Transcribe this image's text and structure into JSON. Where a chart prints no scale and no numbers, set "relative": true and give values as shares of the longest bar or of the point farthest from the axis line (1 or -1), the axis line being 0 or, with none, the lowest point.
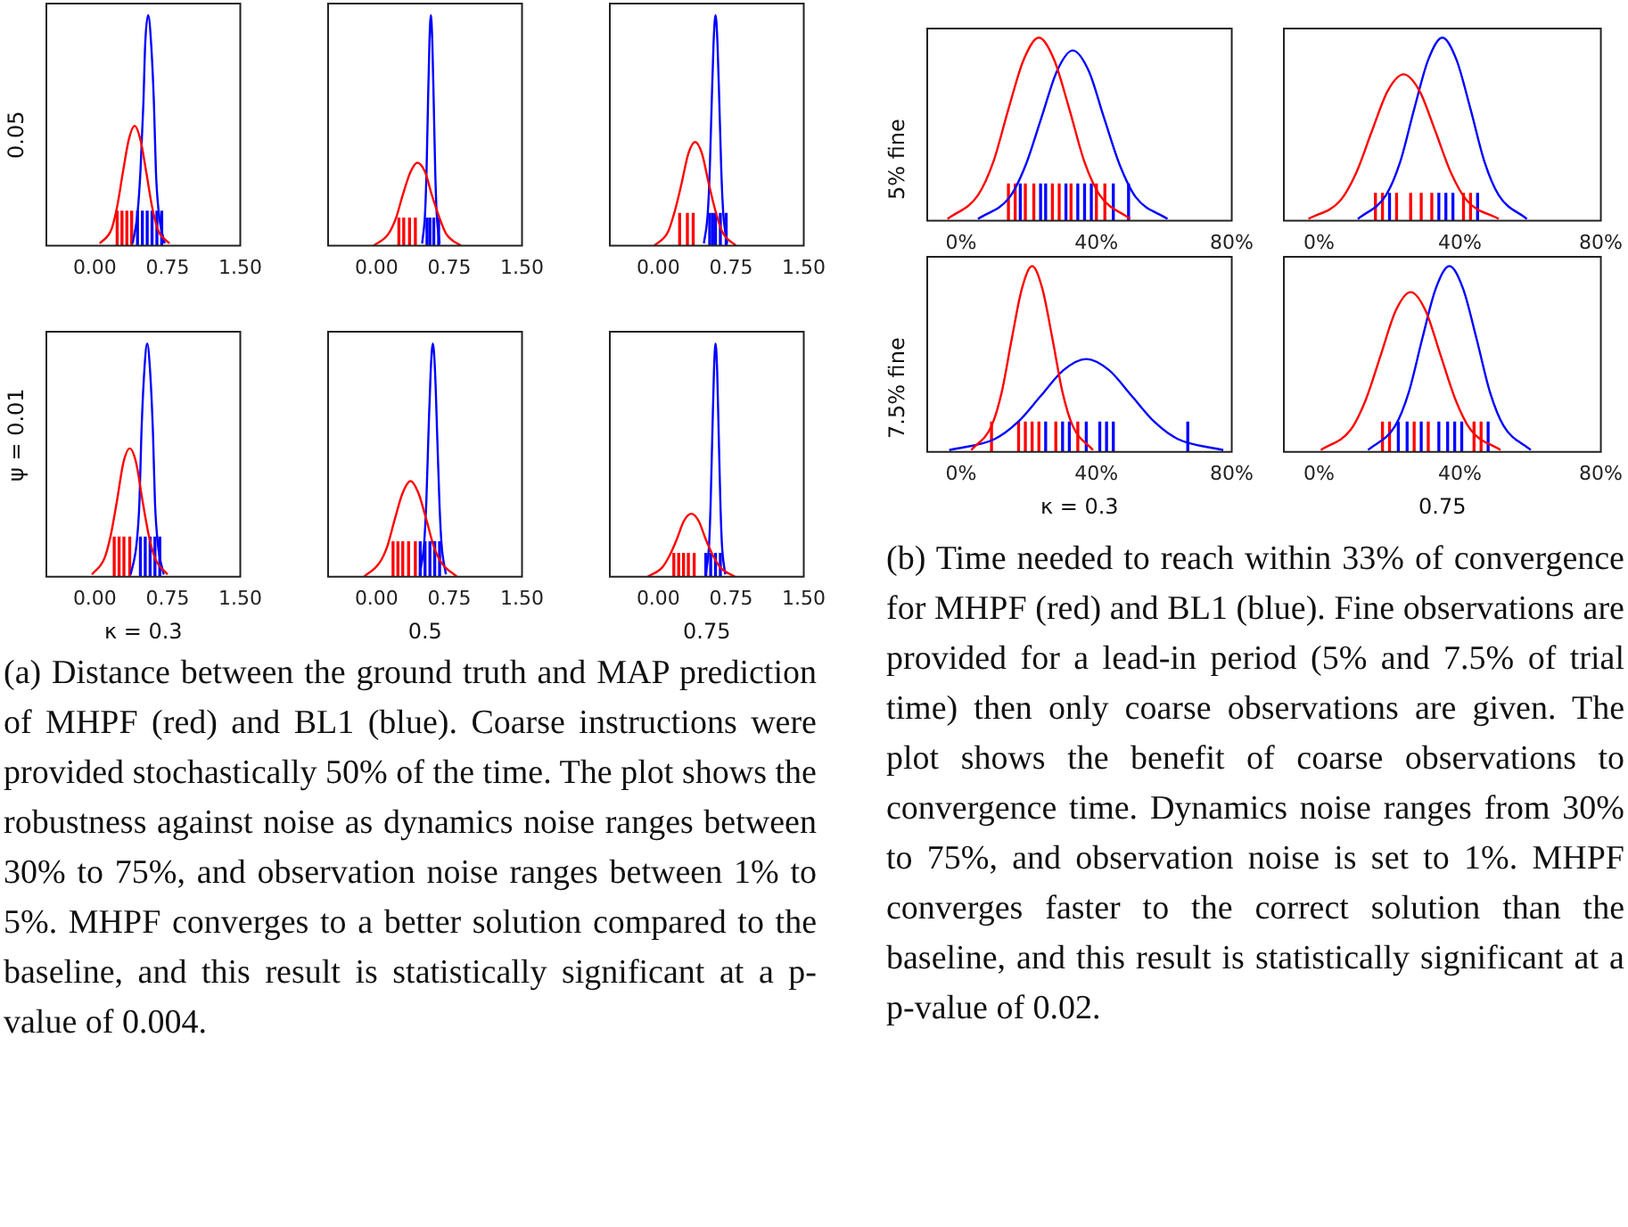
{
  "chart_data": [
    {
      "type": "line",
      "ylabel": "0.05",
      "relative": true,
      "tick_labels": "x",
      "xlim": [
        -0.5,
        1.5
      ],
      "xticks": [
        {
          "value": 0,
          "label": "0.00"
        },
        {
          "value": 0.75,
          "label": "0.75"
        },
        {
          "value": 1.5,
          "label": "1.50"
        }
      ],
      "series": [
        {
          "color": "#ff0000",
          "x": [
            0.05,
            0.17,
            0.23,
            0.29,
            0.35,
            0.41,
            0.47,
            0.53,
            0.59,
            0.65,
            0.77
          ],
          "values": [
            0.01,
            0.07,
            0.17,
            0.32,
            0.46,
            0.52,
            0.46,
            0.32,
            0.17,
            0.07,
            0.01
          ]
        },
        {
          "color": "#0000ff",
          "x": [
            0.39,
            0.44,
            0.47,
            0.5,
            0.52,
            0.55,
            0.58,
            0.61,
            0.63,
            0.66,
            0.72
          ],
          "values": [
            0.01,
            0.14,
            0.32,
            0.61,
            0.88,
            1,
            0.88,
            0.61,
            0.32,
            0.14,
            0.01
          ]
        },
        {
          "type": "bar",
          "color": "#ff0000",
          "x": [
            0.23,
            0.28,
            0.33,
            0.38
          ],
          "values": [
            0.15,
            0.15,
            0.15,
            0.15
          ]
        },
        {
          "type": "bar",
          "color": "#0000ff",
          "x": [
            0.44,
            0.49,
            0.54,
            0.59,
            0.64,
            0.69
          ],
          "values": [
            0.15,
            0.15,
            0.15,
            0.15,
            0.15,
            0.15
          ]
        }
      ]
    },
    {
      "type": "line",
      "relative": true,
      "tick_labels": "x",
      "xlim": [
        -0.5,
        1.5
      ],
      "xticks": [
        {
          "value": 0,
          "label": "0.00"
        },
        {
          "value": 0.75,
          "label": "0.75"
        },
        {
          "value": 1.5,
          "label": "1.50"
        }
      ],
      "series": [
        {
          "color": "#ff0000",
          "x": [
            -0.03,
            0.12,
            0.2,
            0.27,
            0.35,
            0.42,
            0.5,
            0.57,
            0.65,
            0.72,
            0.87
          ],
          "values": [
            0,
            0.05,
            0.12,
            0.22,
            0.32,
            0.36,
            0.32,
            0.22,
            0.12,
            0.05,
            0
          ]
        },
        {
          "color": "#0000ff",
          "x": [
            0.47,
            0.5,
            0.515,
            0.53,
            0.545,
            0.56,
            0.575,
            0.59,
            0.605,
            0.62,
            0.65
          ],
          "values": [
            0.01,
            0.14,
            0.32,
            0.61,
            0.88,
            1,
            0.88,
            0.61,
            0.32,
            0.14,
            0.01
          ]
        },
        {
          "type": "bar",
          "color": "#ff0000",
          "x": [
            0.23,
            0.28,
            0.34,
            0.4
          ],
          "values": [
            0.12,
            0.12,
            0.12,
            0.12
          ]
        },
        {
          "type": "bar",
          "color": "#0000ff",
          "x": [
            0.52,
            0.55,
            0.59,
            0.64
          ],
          "values": [
            0.12,
            0.12,
            0.12,
            0.12
          ]
        }
      ]
    },
    {
      "type": "line",
      "relative": true,
      "tick_labels": "x",
      "xlim": [
        -0.5,
        1.5
      ],
      "xticks": [
        {
          "value": 0,
          "label": "0.00"
        },
        {
          "value": 0.75,
          "label": "0.75"
        },
        {
          "value": 1.5,
          "label": "1.50"
        }
      ],
      "series": [
        {
          "color": "#ff0000",
          "x": [
            -0.04,
            0.1,
            0.17,
            0.24,
            0.31,
            0.38,
            0.45,
            0.52,
            0.59,
            0.66,
            0.8
          ],
          "values": [
            0,
            0.06,
            0.15,
            0.27,
            0.4,
            0.45,
            0.4,
            0.27,
            0.15,
            0.06,
            0
          ]
        },
        {
          "color": "#0000ff",
          "x": [
            0.47,
            0.51,
            0.53,
            0.55,
            0.57,
            0.59,
            0.61,
            0.63,
            0.65,
            0.67,
            0.71
          ],
          "values": [
            0.01,
            0.14,
            0.32,
            0.61,
            0.88,
            1,
            0.88,
            0.61,
            0.32,
            0.14,
            0.01
          ]
        },
        {
          "type": "bar",
          "color": "#ff0000",
          "x": [
            0.22,
            0.3,
            0.36
          ],
          "values": [
            0.14,
            0.14,
            0.14
          ]
        },
        {
          "type": "bar",
          "color": "#0000ff",
          "x": [
            0.53,
            0.56,
            0.59,
            0.64,
            0.7
          ],
          "values": [
            0.14,
            0.14,
            0.14,
            0.14,
            0.14
          ]
        }
      ]
    },
    {
      "type": "line",
      "ylabel": "ψ = 0.01",
      "xlabel": "κ = 0.3",
      "relative": true,
      "tick_labels": "x",
      "xlim": [
        -0.5,
        1.5
      ],
      "xticks": [
        {
          "value": 0,
          "label": "0.00"
        },
        {
          "value": 0.75,
          "label": "0.75"
        },
        {
          "value": 1.5,
          "label": "1.50"
        }
      ],
      "series": [
        {
          "color": "#ff0000",
          "x": [
            -0.03,
            0.1,
            0.165,
            0.23,
            0.295,
            0.36,
            0.425,
            0.49,
            0.555,
            0.62,
            0.75
          ],
          "values": [
            0.01,
            0.08,
            0.18,
            0.33,
            0.49,
            0.55,
            0.49,
            0.33,
            0.18,
            0.08,
            0.01
          ]
        },
        {
          "color": "#0000ff",
          "x": [
            0.37,
            0.43,
            0.46,
            0.48,
            0.51,
            0.54,
            0.57,
            0.6,
            0.62,
            0.65,
            0.71
          ],
          "values": [
            0.01,
            0.14,
            0.32,
            0.61,
            0.88,
            1,
            0.88,
            0.61,
            0.32,
            0.14,
            0.01
          ]
        },
        {
          "type": "bar",
          "color": "#ff0000",
          "x": [
            0.2,
            0.25,
            0.3,
            0.36
          ],
          "values": [
            0.17,
            0.17,
            0.17,
            0.17
          ]
        },
        {
          "type": "bar",
          "color": "#0000ff",
          "x": [
            0.47,
            0.52,
            0.57,
            0.62,
            0.67
          ],
          "values": [
            0.17,
            0.17,
            0.17,
            0.17,
            0.17
          ]
        }
      ]
    },
    {
      "type": "line",
      "xlabel": "0.5",
      "relative": true,
      "tick_labels": "x",
      "xlim": [
        -0.5,
        1.5
      ],
      "xticks": [
        {
          "value": 0,
          "label": "0.00"
        },
        {
          "value": 0.75,
          "label": "0.75"
        },
        {
          "value": 1.5,
          "label": "1.50"
        }
      ],
      "series": [
        {
          "color": "#ff0000",
          "x": [
            -0.13,
            0.03,
            0.11,
            0.19,
            0.27,
            0.35,
            0.43,
            0.51,
            0.59,
            0.67,
            0.83
          ],
          "values": [
            0,
            0.06,
            0.13,
            0.25,
            0.36,
            0.41,
            0.36,
            0.25,
            0.13,
            0.06,
            0
          ]
        },
        {
          "color": "#0000ff",
          "x": [
            0.445,
            0.49,
            0.513,
            0.535,
            0.558,
            0.58,
            0.603,
            0.625,
            0.648,
            0.67,
            0.715
          ],
          "values": [
            0.01,
            0.14,
            0.32,
            0.61,
            0.88,
            1,
            0.88,
            0.61,
            0.32,
            0.14,
            0.01
          ]
        },
        {
          "type": "bar",
          "color": "#ff0000",
          "x": [
            0.17,
            0.22,
            0.27,
            0.33,
            0.4
          ],
          "values": [
            0.15,
            0.15,
            0.15,
            0.15,
            0.15
          ]
        },
        {
          "type": "bar",
          "color": "#0000ff",
          "x": [
            0.45,
            0.5,
            0.55,
            0.6,
            0.65
          ],
          "values": [
            0.15,
            0.15,
            0.15,
            0.15,
            0.15
          ]
        }
      ]
    },
    {
      "type": "line",
      "xlabel": "0.75",
      "relative": true,
      "tick_labels": "x",
      "xlim": [
        -0.5,
        1.5
      ],
      "xticks": [
        {
          "value": 0,
          "label": "0.00"
        },
        {
          "value": 0.75,
          "label": "0.75"
        },
        {
          "value": 1.5,
          "label": "1.50"
        }
      ],
      "annotations": [
        "(a) Distance between the ground truth and MAP prediction of MHPF (red) and BL1 (blue). Coarse instructions were provided stochastically 50% of the time. The plot shows the robustness against noise as dynamics noise ranges between 30% to 75%, and observation noise ranges between 1% to 5%. MHPF converges to a better solution compared to the baseline, and this result is statistically significant at a p-value of 0.004."
      ],
      "series": [
        {
          "color": "#ff0000",
          "x": [
            -0.11,
            0.04,
            0.115,
            0.19,
            0.265,
            0.34,
            0.415,
            0.49,
            0.565,
            0.64,
            0.79
          ],
          "values": [
            0,
            0.04,
            0.09,
            0.16,
            0.24,
            0.27,
            0.24,
            0.16,
            0.09,
            0.04,
            0
          ]
        },
        {
          "color": "#0000ff",
          "x": [
            0.49,
            0.524,
            0.54,
            0.557,
            0.574,
            0.59,
            0.607,
            0.623,
            0.64,
            0.656,
            0.69
          ],
          "values": [
            0.01,
            0.14,
            0.32,
            0.61,
            0.88,
            1,
            0.88,
            0.61,
            0.32,
            0.14,
            0.01
          ]
        },
        {
          "type": "bar",
          "color": "#ff0000",
          "x": [
            0.16,
            0.21,
            0.26,
            0.31,
            0.37
          ],
          "values": [
            0.1,
            0.1,
            0.1,
            0.1,
            0.1
          ]
        },
        {
          "type": "bar",
          "color": "#0000ff",
          "x": [
            0.49,
            0.54,
            0.59,
            0.64
          ],
          "values": [
            0.1,
            0.1,
            0.1,
            0.1
          ]
        }
      ]
    },
    {
      "type": "line",
      "ylabel": "5% fine",
      "relative": true,
      "tick_labels": "x",
      "xlim": [
        -10,
        80
      ],
      "xticks": [
        {
          "value": 0,
          "label": "0%"
        },
        {
          "value": 40,
          "label": "40%"
        },
        {
          "value": 80,
          "label": "80%"
        }
      ],
      "series": [
        {
          "color": "#ff0000",
          "x": [
            -4,
            5,
            9.5,
            14,
            18.5,
            23,
            27.5,
            32,
            36.5,
            41,
            50
          ],
          "values": [
            0.01,
            0.14,
            0.32,
            0.61,
            0.88,
            1,
            0.88,
            0.61,
            0.32,
            0.14,
            0.01
          ]
        },
        {
          "color": "#0000ff",
          "x": [
            5,
            14.4,
            19,
            23.7,
            28.4,
            33,
            37.7,
            42.3,
            47,
            51.6,
            61
          ],
          "values": [
            0.01,
            0.13,
            0.3,
            0.56,
            0.82,
            0.93,
            0.82,
            0.56,
            0.3,
            0.13,
            0.01
          ]
        },
        {
          "type": "bar",
          "color": "#ff0000",
          "x": [
            14,
            16,
            19,
            21.5,
            27,
            29,
            32.5,
            40,
            42.5
          ],
          "values": [
            0.2,
            0.2,
            0.2,
            0.2,
            0.2,
            0.2,
            0.2,
            0.2,
            0.2
          ]
        },
        {
          "type": "bar",
          "color": "#0000ff",
          "x": [
            17.5,
            23.5,
            25,
            31,
            34.5,
            36.5,
            38.5,
            45,
            49.5
          ],
          "values": [
            0.2,
            0.2,
            0.2,
            0.2,
            0.2,
            0.2,
            0.2,
            0.2,
            0.2
          ]
        }
      ]
    },
    {
      "type": "line",
      "relative": true,
      "tick_labels": "x",
      "xlim": [
        -10,
        80
      ],
      "xticks": [
        {
          "value": 0,
          "label": "0%"
        },
        {
          "value": 40,
          "label": "40%"
        },
        {
          "value": 80,
          "label": "80%"
        }
      ],
      "series": [
        {
          "color": "#ff0000",
          "x": [
            -3,
            6,
            10.5,
            15,
            19.5,
            24,
            28.5,
            33,
            37.5,
            42,
            51
          ],
          "values": [
            0.01,
            0.11,
            0.26,
            0.49,
            0.71,
            0.8,
            0.71,
            0.49,
            0.26,
            0.11,
            0.01
          ]
        },
        {
          "color": "#0000ff",
          "x": [
            11,
            19,
            23,
            27,
            31,
            35,
            39,
            43,
            47,
            51,
            59
          ],
          "values": [
            0.01,
            0.14,
            0.32,
            0.61,
            0.88,
            1,
            0.88,
            0.61,
            0.32,
            0.14,
            0.01
          ]
        },
        {
          "type": "bar",
          "color": "#ff0000",
          "x": [
            16,
            18,
            22,
            26,
            29,
            32,
            41,
            43
          ],
          "values": [
            0.15,
            0.15,
            0.15,
            0.15,
            0.15,
            0.15,
            0.15,
            0.15
          ]
        },
        {
          "type": "bar",
          "color": "#0000ff",
          "x": [
            20,
            34,
            36,
            38,
            45
          ],
          "values": [
            0.15,
            0.15,
            0.15,
            0.15,
            0.15
          ]
        }
      ]
    },
    {
      "type": "line",
      "ylabel": "7.5% fine",
      "xlabel": "κ = 0.3",
      "relative": true,
      "tick_labels": "x",
      "xlim": [
        -10,
        80
      ],
      "xticks": [
        {
          "value": 0,
          "label": "0%"
        },
        {
          "value": 40,
          "label": "40%"
        },
        {
          "value": 80,
          "label": "80%"
        }
      ],
      "series": [
        {
          "color": "#ff0000",
          "x": [
            3,
            9,
            12,
            15,
            18,
            21,
            24,
            27,
            30,
            33,
            39
          ],
          "values": [
            0.01,
            0.14,
            0.32,
            0.61,
            0.88,
            1,
            0.88,
            0.61,
            0.32,
            0.14,
            0.01
          ]
        },
        {
          "color": "#0000ff",
          "x": [
            -3.5,
            10,
            16.75,
            23.5,
            30.25,
            37,
            43.75,
            50.5,
            57.25,
            64,
            77.5
          ],
          "values": [
            0.01,
            0.07,
            0.16,
            0.3,
            0.44,
            0.5,
            0.44,
            0.3,
            0.16,
            0.07,
            0.01
          ]
        },
        {
          "type": "bar",
          "color": "#ff0000",
          "x": [
            9,
            17,
            19,
            21,
            23,
            28,
            34.5
          ],
          "values": [
            0.16,
            0.16,
            0.16,
            0.16,
            0.16,
            0.16,
            0.16
          ]
        },
        {
          "type": "bar",
          "color": "#0000ff",
          "x": [
            25,
            30,
            32,
            37,
            41,
            43,
            45,
            67
          ],
          "values": [
            0.16,
            0.16,
            0.16,
            0.16,
            0.16,
            0.16,
            0.16,
            0.16
          ]
        }
      ]
    },
    {
      "type": "line",
      "xlabel": "0.75",
      "relative": true,
      "tick_labels": "x",
      "xlim": [
        -10,
        80
      ],
      "xticks": [
        {
          "value": 0,
          "label": "0%"
        },
        {
          "value": 40,
          "label": "40%"
        },
        {
          "value": 80,
          "label": "80%"
        }
      ],
      "annotations": [
        "(b) Time needed to reach within 33% of convergence for MHPF (red) and BL1 (blue). Fine observations are provided for a lead-in period (5% and 7.5% of trial time) then only coarse observations are given. The plot shows the benefit of coarse observations to convergence time. Dynamics noise ranges from 30% to 75%, and observation noise is set to 1%. MHPF converges faster to the correct solution than the baseline, and this result is statistically significant at a p-value of 0.02."
      ],
      "series": [
        {
          "color": "#ff0000",
          "x": [
            0.5,
            9,
            13.25,
            17.5,
            21.75,
            26,
            30.25,
            34.5,
            38.75,
            43,
            51.5
          ],
          "values": [
            0.01,
            0.12,
            0.28,
            0.52,
            0.76,
            0.86,
            0.76,
            0.52,
            0.28,
            0.12,
            0.01
          ]
        },
        {
          "color": "#0000ff",
          "x": [
            13.9,
            21.6,
            25.45,
            29.3,
            33.15,
            37,
            40.85,
            44.7,
            48.55,
            52.4,
            60.1
          ],
          "values": [
            0.01,
            0.14,
            0.32,
            0.61,
            0.88,
            1,
            0.88,
            0.61,
            0.32,
            0.14,
            0.01
          ]
        },
        {
          "type": "bar",
          "color": "#ff0000",
          "x": [
            18,
            20,
            27,
            31,
            44,
            46
          ],
          "values": [
            0.16,
            0.16,
            0.16,
            0.16,
            0.16,
            0.16
          ]
        },
        {
          "type": "bar",
          "color": "#0000ff",
          "x": [
            22.5,
            25,
            29,
            34,
            36.5,
            38.5,
            40.5,
            48
          ],
          "values": [
            0.16,
            0.16,
            0.16,
            0.16,
            0.16,
            0.16,
            0.16,
            0.16
          ]
        }
      ]
    }
  ]
}
